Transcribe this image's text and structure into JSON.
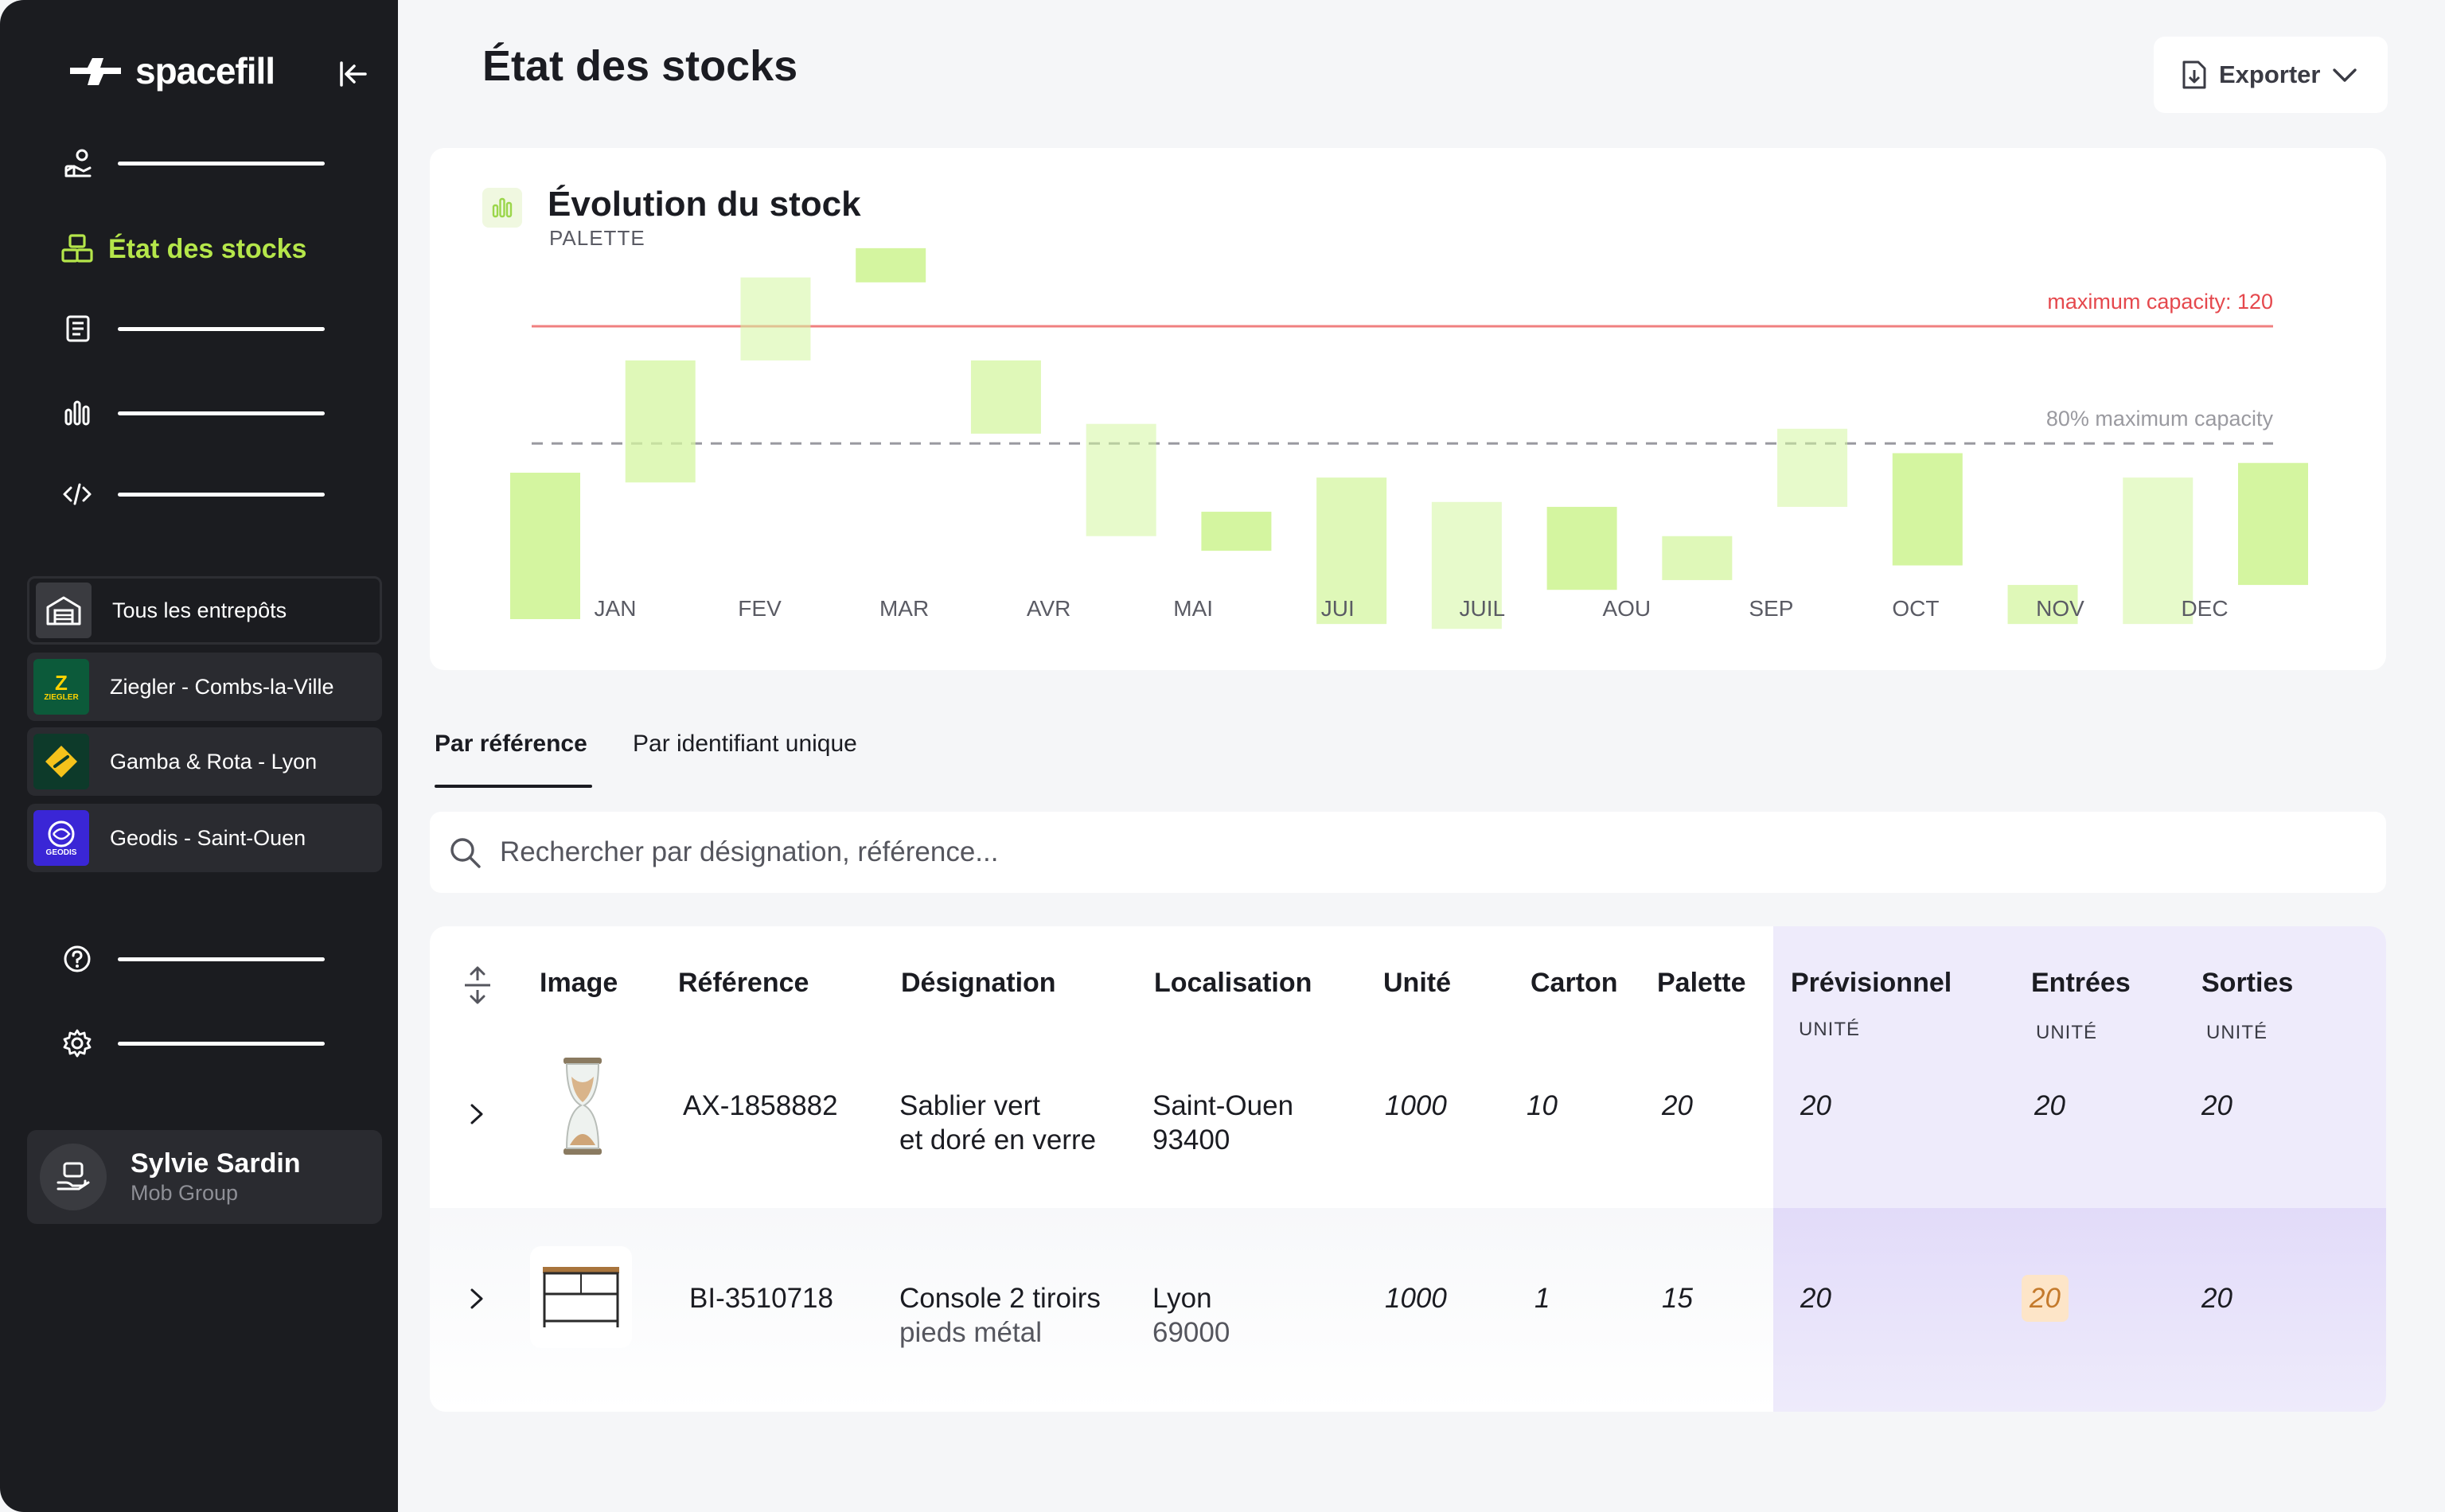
{
  "app": {
    "brand": "spacefill"
  },
  "sidebar": {
    "active_item_label": "État des stocks",
    "warehouses": [
      {
        "label": "Tous les entrepôts"
      },
      {
        "label": "Ziegler - Combs-la-Ville",
        "logo_text": "Z",
        "logo_subtext": "ZIEGLER"
      },
      {
        "label": "Gamba & Rota - Lyon"
      },
      {
        "label": "Geodis - Saint-Ouen",
        "logo_text": "GEODIS"
      }
    ],
    "user": {
      "name": "Sylvie Sardin",
      "company": "Mob Group"
    }
  },
  "header": {
    "title": "État des stocks",
    "export_label": "Exporter"
  },
  "chart_data": {
    "type": "bar",
    "title": "Évolution du stock",
    "subtitle": "PALETTE",
    "categories": [
      "JAN",
      "FEV",
      "MAR",
      "AVR",
      "MAI",
      "JUI",
      "JUIL",
      "AOU",
      "SEP",
      "OCT",
      "NOV",
      "DEC"
    ],
    "ranges": [
      [
        60,
        90
      ],
      [
        88,
        113
      ],
      [
        113,
        130
      ],
      [
        129,
        136
      ],
      [
        98,
        113
      ],
      [
        77,
        100
      ],
      [
        74,
        82
      ],
      [
        59,
        89
      ],
      [
        58,
        84
      ],
      [
        66,
        83
      ],
      [
        68,
        77
      ],
      [
        83,
        99
      ],
      [
        71,
        94
      ],
      [
        59,
        67
      ],
      [
        59,
        89
      ],
      [
        67,
        92
      ]
    ],
    "ylim": [
      0,
      150
    ],
    "reference_lines": [
      {
        "label": "maximum capacity: 120",
        "value": 120,
        "color": "#f08080"
      },
      {
        "label": "80% maximum capacity",
        "value": 96,
        "color": "#9a9aa0"
      }
    ],
    "bar_color": "#d4f5a0"
  },
  "tabs": [
    {
      "label": "Par référence",
      "active": true
    },
    {
      "label": "Par identifiant unique",
      "active": false
    }
  ],
  "search": {
    "placeholder": "Rechercher par désignation, référence..."
  },
  "table": {
    "columns": {
      "image": "Image",
      "reference": "Référence",
      "designation": "Désignation",
      "localisation": "Localisation",
      "unite": "Unité",
      "carton": "Carton",
      "palette": "Palette",
      "previsionnel": "Prévisionnel",
      "entrees": "Entrées",
      "sorties": "Sorties"
    },
    "sub_headers": {
      "previsionnel": "UNITÉ",
      "entrees": "UNITÉ",
      "sorties": "UNITÉ"
    },
    "rows": [
      {
        "reference": "AX-1858882",
        "designation_1": "Sablier vert",
        "designation_2": "et doré en verre",
        "localisation_1": "Saint-Ouen",
        "localisation_2": "93400",
        "unite": "1000",
        "carton": "10",
        "palette": "20",
        "previsionnel": "20",
        "entrees": "20",
        "sorties": "20"
      },
      {
        "reference": "BI-3510718",
        "designation_1": "Console 2 tiroirs",
        "designation_2": "pieds métal",
        "localisation_1": "Lyon",
        "localisation_2": "69000",
        "unite": "1000",
        "carton": "1",
        "palette": "15",
        "previsionnel": "20",
        "entrees": "20",
        "sorties": "20"
      }
    ]
  },
  "colors": {
    "accent_green": "#b5e64a",
    "sidebar_bg": "#1b1c20",
    "purple_col": "#eeebfb",
    "alert_orange": "#fde5c8"
  }
}
